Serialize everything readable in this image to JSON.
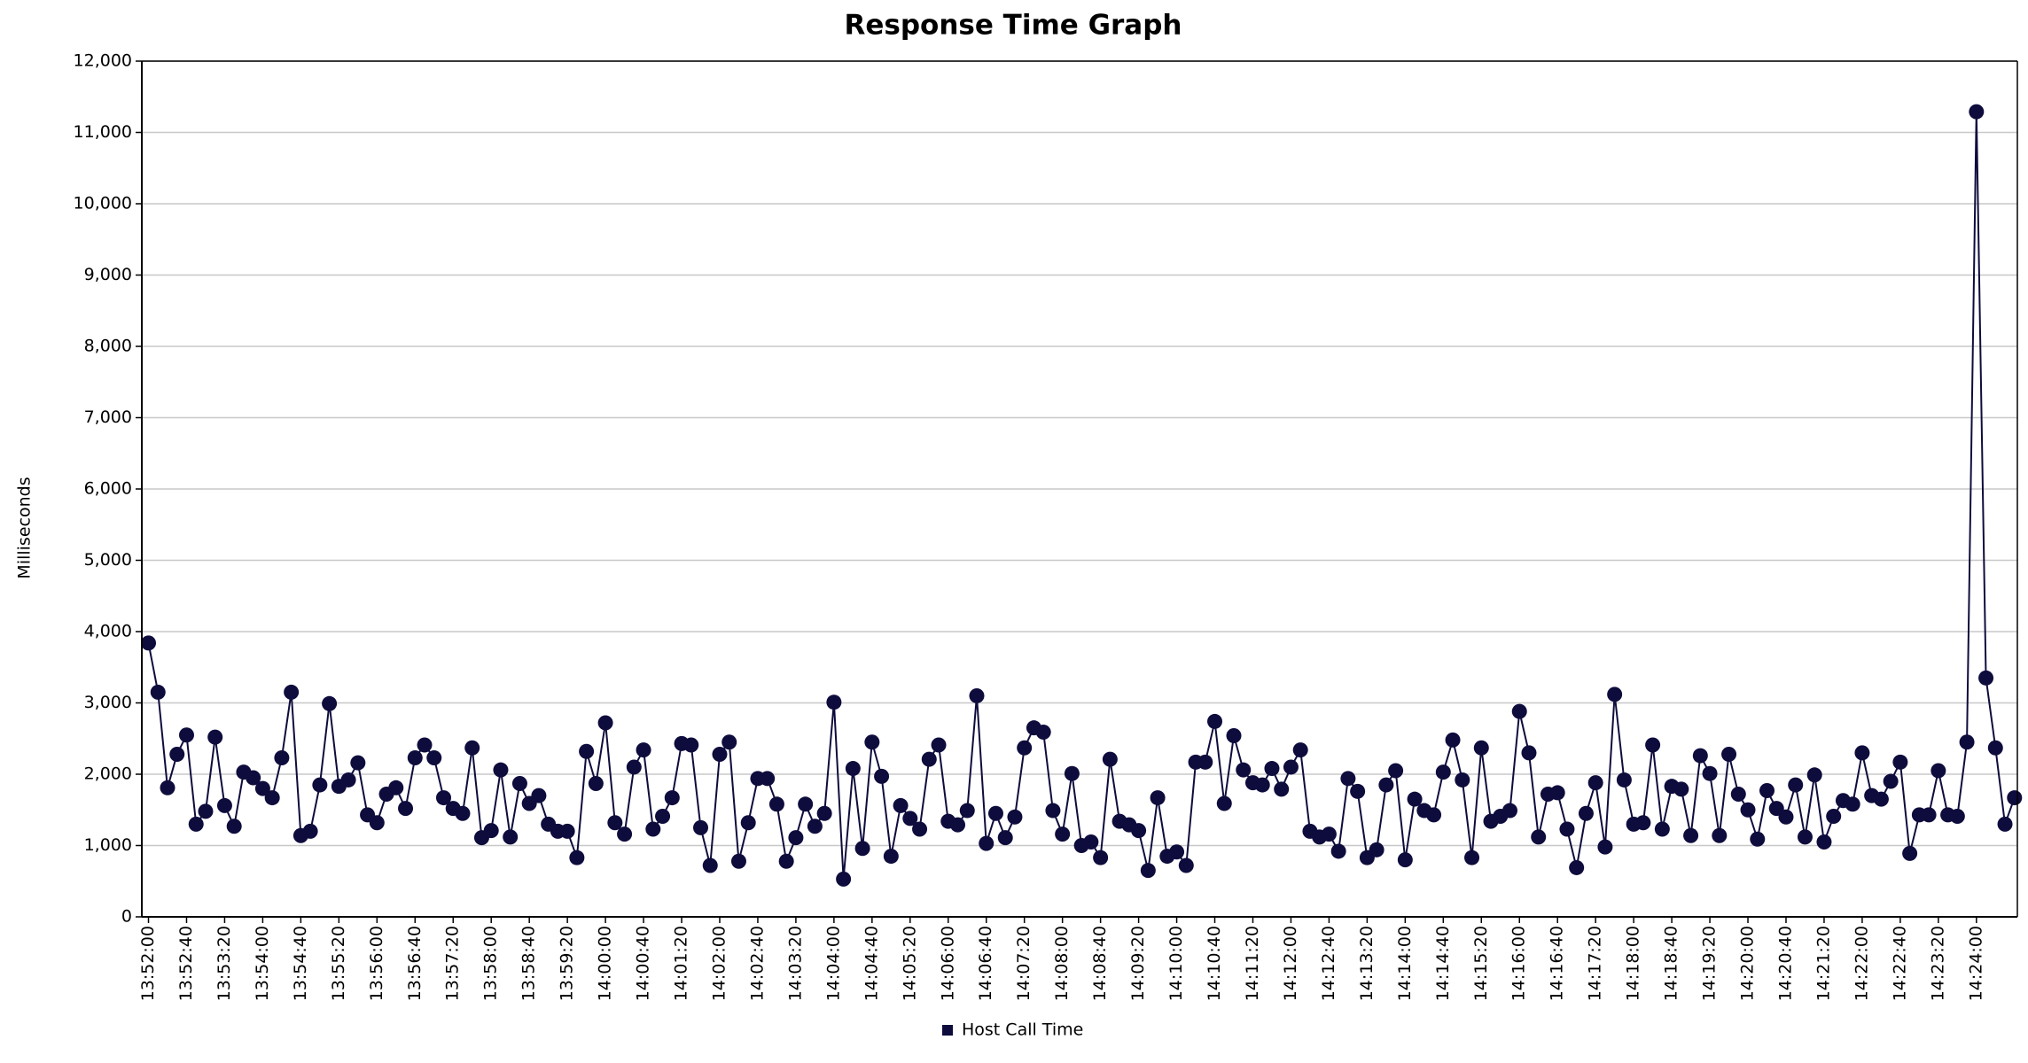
{
  "chart_data": {
    "type": "line",
    "title": "Response Time Graph",
    "y_label": "Milliseconds",
    "grid": true,
    "legend": "bottom",
    "x": [
      "13:52:00",
      "13:52:10",
      "13:52:20",
      "13:52:30",
      "13:52:40",
      "13:52:50",
      "13:53:00",
      "13:53:10",
      "13:53:20",
      "13:53:30",
      "13:53:40",
      "13:53:50",
      "13:54:00",
      "13:54:10",
      "13:54:20",
      "13:54:30",
      "13:54:40",
      "13:54:50",
      "13:55:00",
      "13:55:10",
      "13:55:20",
      "13:55:30",
      "13:55:40",
      "13:55:50",
      "13:56:00",
      "13:56:10",
      "13:56:20",
      "13:56:30",
      "13:56:40",
      "13:56:50",
      "13:57:00",
      "13:57:10",
      "13:57:20",
      "13:57:30",
      "13:57:40",
      "13:57:50",
      "13:58:00",
      "13:58:10",
      "13:58:20",
      "13:58:30",
      "13:58:40",
      "13:58:50",
      "13:59:00",
      "13:59:10",
      "13:59:20",
      "13:59:30",
      "13:59:40",
      "13:59:50",
      "14:00:00",
      "14:00:10",
      "14:00:20",
      "14:00:30",
      "14:00:40",
      "14:00:50",
      "14:01:00",
      "14:01:10",
      "14:01:20",
      "14:01:30",
      "14:01:40",
      "14:01:50",
      "14:02:00",
      "14:02:10",
      "14:02:20",
      "14:02:30",
      "14:02:40",
      "14:02:50",
      "14:03:00",
      "14:03:10",
      "14:03:20",
      "14:03:30",
      "14:03:40",
      "14:03:50",
      "14:04:00",
      "14:04:10",
      "14:04:20",
      "14:04:30",
      "14:04:40",
      "14:04:50",
      "14:05:00",
      "14:05:10",
      "14:05:20",
      "14:05:30",
      "14:05:40",
      "14:05:50",
      "14:06:00",
      "14:06:10",
      "14:06:20",
      "14:06:30",
      "14:06:40",
      "14:06:50",
      "14:07:00",
      "14:07:10",
      "14:07:20",
      "14:07:30",
      "14:07:40",
      "14:07:50",
      "14:08:00",
      "14:08:10",
      "14:08:20",
      "14:08:30",
      "14:08:40",
      "14:08:50",
      "14:09:00",
      "14:09:10",
      "14:09:20",
      "14:09:30",
      "14:09:40",
      "14:09:50",
      "14:10:00",
      "14:10:10",
      "14:10:20",
      "14:10:30",
      "14:10:40",
      "14:10:50",
      "14:11:00",
      "14:11:10",
      "14:11:20",
      "14:11:30",
      "14:11:40",
      "14:11:50",
      "14:12:00",
      "14:12:10",
      "14:12:20",
      "14:12:30",
      "14:12:40",
      "14:12:50",
      "14:13:00",
      "14:13:10",
      "14:13:20",
      "14:13:30",
      "14:13:40",
      "14:13:50",
      "14:14:00",
      "14:14:10",
      "14:14:20",
      "14:14:30",
      "14:14:40",
      "14:14:50",
      "14:15:00",
      "14:15:10",
      "14:15:20",
      "14:15:30",
      "14:15:40",
      "14:15:50",
      "14:16:00",
      "14:16:10",
      "14:16:20",
      "14:16:30",
      "14:16:40",
      "14:16:50",
      "14:17:00",
      "14:17:10",
      "14:17:20",
      "14:17:30",
      "14:17:40",
      "14:17:50",
      "14:18:00",
      "14:18:10",
      "14:18:20",
      "14:18:30",
      "14:18:40",
      "14:18:50",
      "14:19:00",
      "14:19:10",
      "14:19:20",
      "14:19:30",
      "14:19:40",
      "14:19:50",
      "14:20:00",
      "14:20:10",
      "14:20:20",
      "14:20:30",
      "14:20:40",
      "14:20:50",
      "14:21:00",
      "14:21:10",
      "14:21:20",
      "14:21:30",
      "14:21:40",
      "14:21:50",
      "14:22:00",
      "14:22:10",
      "14:22:20",
      "14:22:30",
      "14:22:40",
      "14:22:50",
      "14:23:00",
      "14:23:10",
      "14:23:20",
      "14:23:30",
      "14:23:40",
      "14:23:50",
      "14:24:00",
      "14:24:10",
      "14:24:20",
      "14:24:30",
      "14:24:40"
    ],
    "series": [
      {
        "name": "Host Call Time",
        "color": "#0e0c3c",
        "values": [
          3840,
          3150,
          1810,
          2280,
          2550,
          1300,
          1480,
          2520,
          1560,
          1270,
          2030,
          1950,
          1800,
          1670,
          2230,
          3150,
          1140,
          1200,
          1850,
          2990,
          1830,
          1920,
          2160,
          1430,
          1320,
          1720,
          1810,
          1520,
          2230,
          2410,
          2230,
          1670,
          1520,
          1450,
          2370,
          1110,
          1210,
          2060,
          1120,
          1870,
          1590,
          1700,
          1300,
          1200,
          1200,
          830,
          2320,
          1870,
          2720,
          1320,
          1160,
          2100,
          2340,
          1230,
          1410,
          1670,
          2430,
          2410,
          1250,
          720,
          2280,
          2450,
          780,
          1320,
          1940,
          1940,
          1580,
          780,
          1110,
          1580,
          1270,
          1450,
          3010,
          530,
          2080,
          960,
          2450,
          1970,
          850,
          1560,
          1380,
          1230,
          2210,
          2410,
          1340,
          1290,
          1490,
          3100,
          1030,
          1450,
          1110,
          1400,
          2370,
          2650,
          2590,
          1490,
          1160,
          2010,
          1000,
          1050,
          830,
          2210,
          1340,
          1290,
          1210,
          650,
          1670,
          850,
          910,
          720,
          2170,
          2170,
          2740,
          1590,
          2540,
          2060,
          1880,
          1850,
          2080,
          1790,
          2100,
          2340,
          1200,
          1120,
          1160,
          920,
          1940,
          1760,
          830,
          940,
          1850,
          2050,
          800,
          1650,
          1490,
          1430,
          2030,
          2480,
          1920,
          830,
          2370,
          1340,
          1410,
          1490,
          2880,
          2300,
          1120,
          1720,
          1740,
          1230,
          690,
          1450,
          1880,
          980,
          3120,
          1920,
          1300,
          1320,
          2410,
          1230,
          1830,
          1790,
          1140,
          2260,
          2010,
          1140,
          2280,
          1720,
          1500,
          1090,
          1770,
          1520,
          1400,
          1850,
          1120,
          1990,
          1050,
          1410,
          1630,
          1580,
          2300,
          1700,
          1650,
          1900,
          2170,
          890,
          1430,
          1430,
          2050,
          1430,
          1410,
          2450,
          11290,
          3350,
          2370,
          1300,
          1670
        ]
      }
    ],
    "xlim": [
      "13:51:53",
      "14:24:43"
    ],
    "xticks": [
      "13:52:00",
      "13:52:40",
      "13:53:20",
      "13:54:00",
      "13:54:40",
      "13:55:20",
      "13:56:00",
      "13:56:40",
      "13:57:20",
      "13:58:00",
      "13:58:40",
      "13:59:20",
      "14:00:00",
      "14:00:40",
      "14:01:20",
      "14:02:00",
      "14:02:40",
      "14:03:20",
      "14:04:00",
      "14:04:40",
      "14:05:20",
      "14:06:00",
      "14:06:40",
      "14:07:20",
      "14:08:00",
      "14:08:40",
      "14:09:20",
      "14:10:00",
      "14:10:40",
      "14:11:20",
      "14:12:00",
      "14:12:40",
      "14:13:20",
      "14:14:00",
      "14:14:40",
      "14:15:20",
      "14:16:00",
      "14:16:40",
      "14:17:20",
      "14:18:00",
      "14:18:40",
      "14:19:20",
      "14:20:00",
      "14:20:40",
      "14:21:20",
      "14:22:00",
      "14:22:40",
      "14:23:20",
      "14:24:00"
    ],
    "ylim": [
      0,
      12000
    ],
    "yticks": [
      0,
      {
        "value": 1000,
        "label": "1,000"
      },
      {
        "value": 2000,
        "label": "2,000"
      },
      {
        "value": 3000,
        "label": "3,000"
      },
      {
        "value": 4000,
        "label": "4,000"
      },
      {
        "value": 5000,
        "label": "5,000"
      },
      {
        "value": 6000,
        "label": "6,000"
      },
      {
        "value": 7000,
        "label": "7,000"
      },
      {
        "value": 8000,
        "label": "8,000"
      },
      {
        "value": 9000,
        "label": "9,000"
      },
      {
        "value": 10000,
        "label": "10,000"
      },
      {
        "value": 11000,
        "label": "11,000"
      },
      {
        "value": 12000,
        "label": "12,000"
      }
    ]
  }
}
